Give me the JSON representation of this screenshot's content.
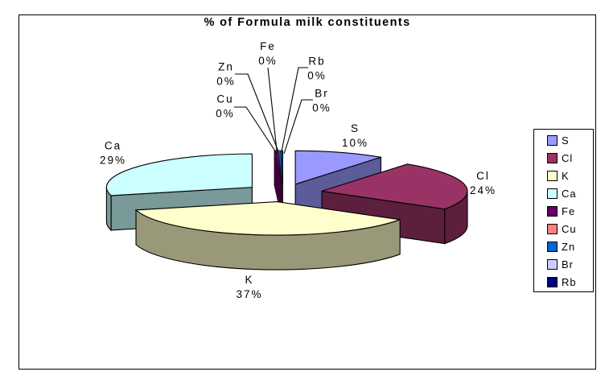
{
  "title": "% of Formula milk constituents",
  "chart_data": {
    "type": "pie",
    "title": "% of Formula milk constituents",
    "categories": [
      "S",
      "Cl",
      "K",
      "Ca",
      "Fe",
      "Cu",
      "Zn",
      "Br",
      "Rb"
    ],
    "values": [
      10,
      24,
      37,
      29,
      0,
      0,
      0,
      0,
      0
    ],
    "unit": "%",
    "colors": {
      "S": "#9999FF",
      "Cl": "#993366",
      "K": "#FFFFCC",
      "Ca": "#CCFFFF",
      "Fe": "#660066",
      "Cu": "#FF8080",
      "Zn": "#0066CC",
      "Br": "#CCCCFF",
      "Rb": "#000080"
    },
    "style": "3d-exploded-pie",
    "legend_position": "right",
    "data_labels": "category-name-and-percent"
  },
  "legend": {
    "items": [
      {
        "label": "S",
        "color": "#9999FF"
      },
      {
        "label": "Cl",
        "color": "#993366"
      },
      {
        "label": "K",
        "color": "#FFFFCC"
      },
      {
        "label": "Ca",
        "color": "#CCFFFF"
      },
      {
        "label": "Fe",
        "color": "#660066"
      },
      {
        "label": "Cu",
        "color": "#FF8080"
      },
      {
        "label": "Zn",
        "color": "#0066CC"
      },
      {
        "label": "Br",
        "color": "#CCCCFF"
      },
      {
        "label": "Rb",
        "color": "#000080"
      }
    ]
  }
}
